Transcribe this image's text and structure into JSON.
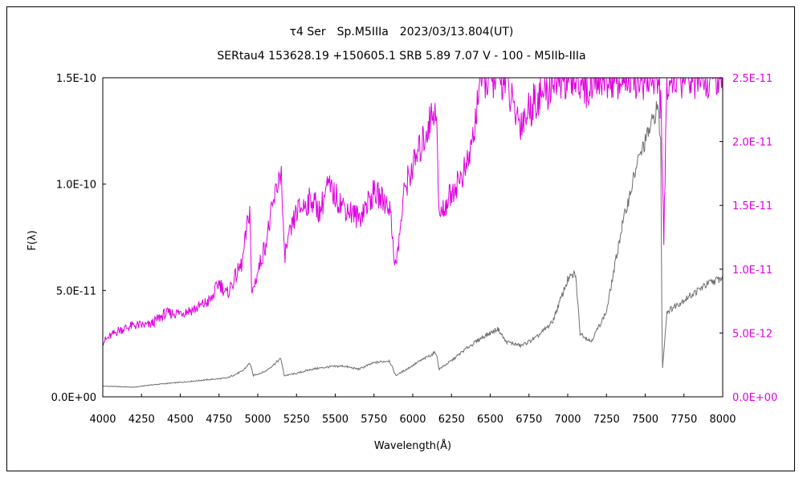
{
  "chart_data": {
    "type": "line",
    "title": "τ4 Ser　Sp.M5IIIa　2023/03/13.804(UT)",
    "subtitle": "SERtau4 153628.19 +150605.1 SRB 5.89 7.07 V - 100 - M5IIb-IIIa",
    "xlabel": "Wavelength(Å)",
    "ylabel": "F(λ)",
    "xlim": [
      4000,
      8000
    ],
    "ylim_left": [
      0,
      1.5e-10
    ],
    "ylim_right": [
      0,
      2.5e-11
    ],
    "x_ticks": [
      "4000",
      "4250",
      "4500",
      "4750",
      "5000",
      "5250",
      "5500",
      "5750",
      "6000",
      "6250",
      "6500",
      "6750",
      "7000",
      "7250",
      "7500",
      "7750",
      "8000"
    ],
    "y_ticks_left": [
      "0.0E+00",
      "5.0E-11",
      "1.0E-10",
      "1.5E-10"
    ],
    "y_ticks_right": [
      "0.0E+00",
      "5.0E-12",
      "1.0E-11",
      "1.5E-11",
      "2.0E-11",
      "2.5E-11"
    ],
    "grid": false,
    "series": [
      {
        "axis": "left",
        "color": "#707070",
        "points": [
          [
            4000,
            5e-12
          ],
          [
            4100,
            4.8e-12
          ],
          [
            4200,
            4.5e-12
          ],
          [
            4300,
            5.5e-12
          ],
          [
            4400,
            6.2e-12
          ],
          [
            4500,
            6.8e-12
          ],
          [
            4600,
            7.5e-12
          ],
          [
            4700,
            8.2e-12
          ],
          [
            4800,
            8.8e-12
          ],
          [
            4900,
            1.2e-11
          ],
          [
            4950,
            1.6e-11
          ],
          [
            4970,
            1e-11
          ],
          [
            5050,
            1.2e-11
          ],
          [
            5150,
            1.8e-11
          ],
          [
            5170,
            1e-11
          ],
          [
            5250,
            1.1e-11
          ],
          [
            5350,
            1.3e-11
          ],
          [
            5450,
            1.4e-11
          ],
          [
            5550,
            1.45e-11
          ],
          [
            5650,
            1.3e-11
          ],
          [
            5750,
            1.6e-11
          ],
          [
            5850,
            1.7e-11
          ],
          [
            5890,
            1e-11
          ],
          [
            5950,
            1.25e-11
          ],
          [
            6050,
            1.7e-11
          ],
          [
            6150,
            2.1e-11
          ],
          [
            6170,
            1.3e-11
          ],
          [
            6250,
            1.7e-11
          ],
          [
            6350,
            2.3e-11
          ],
          [
            6450,
            2.8e-11
          ],
          [
            6550,
            3.2e-11
          ],
          [
            6600,
            2.6e-11
          ],
          [
            6700,
            2.4e-11
          ],
          [
            6800,
            2.8e-11
          ],
          [
            6900,
            3.5e-11
          ],
          [
            6950,
            4.5e-11
          ],
          [
            7000,
            5.5e-11
          ],
          [
            7050,
            5.8e-11
          ],
          [
            7080,
            3e-11
          ],
          [
            7150,
            2.6e-11
          ],
          [
            7250,
            4e-11
          ],
          [
            7350,
            8e-11
          ],
          [
            7450,
            1.1e-10
          ],
          [
            7550,
            1.3e-10
          ],
          [
            7580,
            1.37e-10
          ],
          [
            7600,
            1.2e-10
          ],
          [
            7610,
            1.2e-11
          ],
          [
            7640,
            4e-11
          ],
          [
            7700,
            4.3e-11
          ],
          [
            7800,
            4.8e-11
          ],
          [
            7900,
            5.3e-11
          ],
          [
            8000,
            5.6e-11
          ]
        ]
      },
      {
        "axis": "right",
        "color": "#e000e0",
        "points": [
          [
            4000,
            4.3e-12
          ],
          [
            4100,
            5.2e-12
          ],
          [
            4200,
            5.6e-12
          ],
          [
            4300,
            5.6e-12
          ],
          [
            4400,
            6.5e-12
          ],
          [
            4500,
            6.6e-12
          ],
          [
            4600,
            6.9e-12
          ],
          [
            4700,
            7.6e-12
          ],
          [
            4750,
            9e-12
          ],
          [
            4800,
            8e-12
          ],
          [
            4900,
            1.05e-11
          ],
          [
            4950,
            1.5e-11
          ],
          [
            4960,
            8e-12
          ],
          [
            5050,
            1.2e-11
          ],
          [
            5150,
            1.8e-11
          ],
          [
            5170,
            1.1e-11
          ],
          [
            5250,
            1.45e-11
          ],
          [
            5350,
            1.55e-11
          ],
          [
            5400,
            1.45e-11
          ],
          [
            5450,
            1.65e-11
          ],
          [
            5550,
            1.5e-11
          ],
          [
            5650,
            1.4e-11
          ],
          [
            5750,
            1.6e-11
          ],
          [
            5850,
            1.5e-11
          ],
          [
            5890,
            1e-11
          ],
          [
            5950,
            1.65e-11
          ],
          [
            6050,
            1.95e-11
          ],
          [
            6150,
            2.3e-11
          ],
          [
            6170,
            1.4e-11
          ],
          [
            6250,
            1.6e-11
          ],
          [
            6350,
            1.8e-11
          ],
          [
            6400,
            2.1e-11
          ],
          [
            6430,
            2.5e-11
          ],
          [
            6600,
            2.5e-11
          ],
          [
            6650,
            2.25e-11
          ],
          [
            6700,
            2.15e-11
          ],
          [
            6800,
            2.35e-11
          ],
          [
            6880,
            2.4e-11
          ],
          [
            6900,
            2.5e-11
          ],
          [
            7100,
            2.5e-11
          ],
          [
            7130,
            2.35e-11
          ],
          [
            7150,
            2.5e-11
          ],
          [
            7580,
            2.5e-11
          ],
          [
            7600,
            2.3e-11
          ],
          [
            7620,
            1.2e-11
          ],
          [
            7640,
            2.5e-11
          ],
          [
            8000,
            2.5e-11
          ]
        ]
      }
    ]
  }
}
